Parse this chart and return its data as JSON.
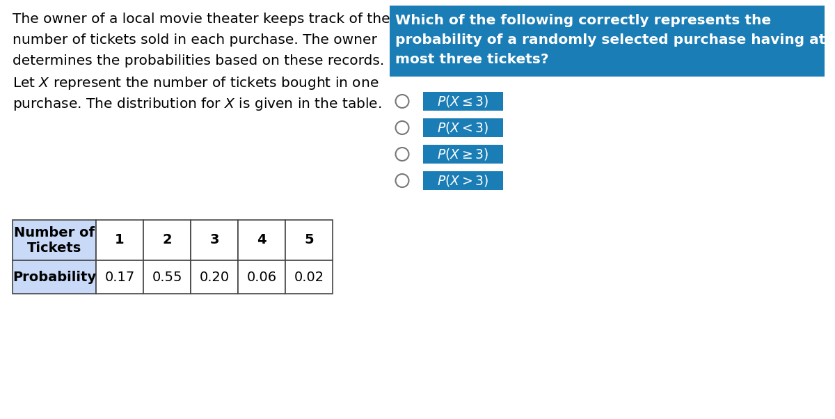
{
  "background_color": "#ffffff",
  "body_lines": [
    "The owner of a local movie theater keeps track of the",
    "number of tickets sold in each purchase. The owner",
    "determines the probabilities based on these records.",
    "Let $X$ represent the number of tickets bought in one",
    "purchase. The distribution for $X$ is given in the table."
  ],
  "table_col_header": [
    "Number of\nTickets",
    "1",
    "2",
    "3",
    "4",
    "5"
  ],
  "table_row_data": [
    "Probability",
    "0.17",
    "0.55",
    "0.20",
    "0.06",
    "0.02"
  ],
  "table_header_bg": "#c9daf8",
  "table_border_color": "#555555",
  "question_lines": [
    "Which of the following correctly represents the",
    "probability of a randomly selected purchase having at",
    "most three tickets?"
  ],
  "question_bg": "#1a7db5",
  "question_text_color": "#ffffff",
  "option_labels": [
    "P(X ≤ 3)",
    "P(X < 3)",
    "P(X ≥ 3)",
    "P(X > 3)"
  ],
  "option_bg": "#1a7db5",
  "option_text_color": "#ffffff",
  "circle_color": "#888888",
  "font_size_body": 14.5,
  "font_size_table": 14,
  "font_size_question": 14.5,
  "font_size_option": 13.5,
  "fig_width": 12.0,
  "fig_height": 6.02,
  "dpi": 100
}
